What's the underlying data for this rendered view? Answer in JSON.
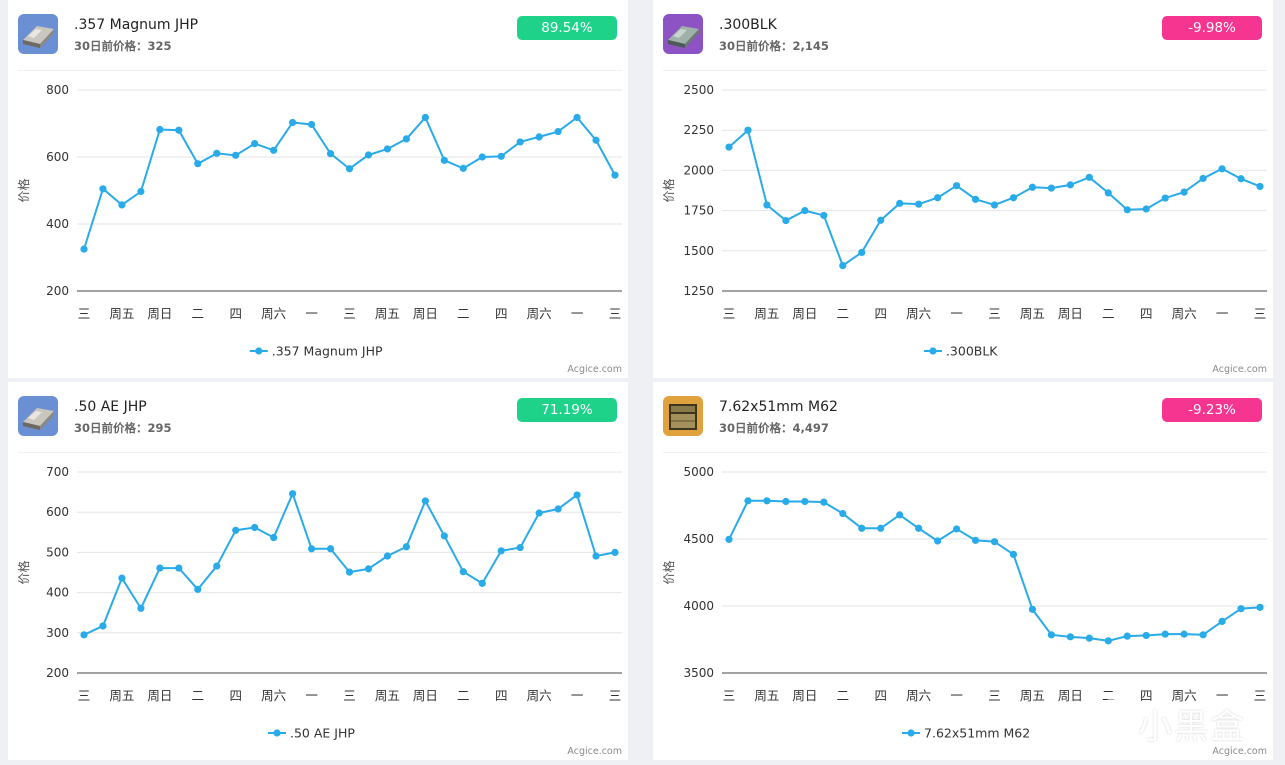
{
  "colors": {
    "line": "#29abe9",
    "badge_up": "#1ed28a",
    "badge_down": "#f5358f",
    "grid": "#e6e6e6",
    "axis": "#444444",
    "tick_text": "#333333"
  },
  "cards": [
    {
      "item_name": ".357 Magnum JHP",
      "prev_price_label": "30日前价格：",
      "prev_price_value": "325",
      "change": "89.54%",
      "direction": "up",
      "icon": "ammo-box-icon",
      "watermark": "Acgice.com"
    },
    {
      "item_name": ".300BLK",
      "prev_price_label": "30日前价格：",
      "prev_price_value": "2,145",
      "change": "-9.98%",
      "direction": "down",
      "icon": "ammo-box-icon",
      "watermark": "Acgice.com"
    },
    {
      "item_name": ".50 AE JHP",
      "prev_price_label": "30日前价格：",
      "prev_price_value": "295",
      "change": "71.19%",
      "direction": "up",
      "icon": "ammo-box-icon",
      "watermark": "Acgice.com"
    },
    {
      "item_name": "7.62x51mm M62",
      "prev_price_label": "30日前价格：",
      "prev_price_value": "4,497",
      "change": "-9.23%",
      "direction": "down",
      "icon": "ammo-box-icon",
      "watermark": "Acgice.com"
    }
  ],
  "chart_data": [
    {
      "type": "line",
      "ylabel": "价格",
      "x_tick_labels": [
        "三",
        "周五",
        "周日",
        "二",
        "四",
        "周六",
        "一",
        "三",
        "周五",
        "周日",
        "二",
        "四",
        "周六",
        "一",
        "三"
      ],
      "ylim": [
        200,
        800
      ],
      "yticks": [
        200,
        400,
        600,
        800
      ],
      "series": [
        {
          "name": ".357 Magnum JHP",
          "values": [
            325,
            505,
            457,
            497,
            682,
            680,
            580,
            611,
            605,
            640,
            620,
            703,
            697,
            610,
            565,
            606,
            624,
            654,
            718,
            590,
            566,
            600,
            602,
            645,
            660,
            676,
            718,
            650,
            546
          ]
        }
      ],
      "legend_position": "bottom-center",
      "grid": true
    },
    {
      "type": "line",
      "ylabel": "价格",
      "x_tick_labels": [
        "三",
        "周五",
        "周日",
        "二",
        "四",
        "周六",
        "一",
        "三",
        "周五",
        "周日",
        "二",
        "四",
        "周六",
        "一",
        "三"
      ],
      "ylim": [
        1250,
        2500
      ],
      "yticks": [
        1250,
        1500,
        1750,
        2000,
        2250,
        2500
      ],
      "series": [
        {
          "name": ".300BLK",
          "values": [
            2145,
            2250,
            1785,
            1688,
            1750,
            1720,
            1408,
            1490,
            1690,
            1795,
            1790,
            1830,
            1905,
            1820,
            1785,
            1830,
            1895,
            1890,
            1910,
            1957,
            1860,
            1755,
            1760,
            1828,
            1865,
            1950,
            2010,
            1948,
            1900
          ]
        }
      ],
      "legend_position": "bottom-center",
      "grid": true
    },
    {
      "type": "line",
      "ylabel": "价格",
      "x_tick_labels": [
        "三",
        "周五",
        "周日",
        "二",
        "四",
        "周六",
        "一",
        "三",
        "周五",
        "周日",
        "二",
        "四",
        "周六",
        "一",
        "三"
      ],
      "ylim": [
        200,
        700
      ],
      "yticks": [
        200,
        300,
        400,
        500,
        600,
        700
      ],
      "series": [
        {
          "name": ".50 AE JHP",
          "values": [
            295,
            317,
            436,
            361,
            461,
            461,
            408,
            466,
            555,
            562,
            537,
            646,
            509,
            509,
            451,
            459,
            491,
            514,
            628,
            541,
            452,
            423,
            504,
            512,
            598,
            608,
            643,
            491,
            500
          ]
        }
      ],
      "legend_position": "bottom-center",
      "grid": true
    },
    {
      "type": "line",
      "ylabel": "价格",
      "x_tick_labels": [
        "三",
        "周五",
        "周日",
        "二",
        "四",
        "周六",
        "一",
        "三",
        "周五",
        "周日",
        "二",
        "四",
        "周六",
        "一",
        "三"
      ],
      "ylim": [
        3500,
        5000
      ],
      "yticks": [
        3500,
        4000,
        4500,
        5000
      ],
      "series": [
        {
          "name": "7.62x51mm M62",
          "values": [
            4497,
            4785,
            4785,
            4780,
            4780,
            4775,
            4690,
            4580,
            4580,
            4680,
            4580,
            4485,
            4575,
            4490,
            4480,
            4385,
            3975,
            3785,
            3770,
            3760,
            3740,
            3775,
            3780,
            3790,
            3790,
            3785,
            3885,
            3980,
            3990
          ]
        }
      ],
      "legend_position": "bottom-center",
      "grid": true
    }
  ],
  "site_logo_text": "小黑盒"
}
